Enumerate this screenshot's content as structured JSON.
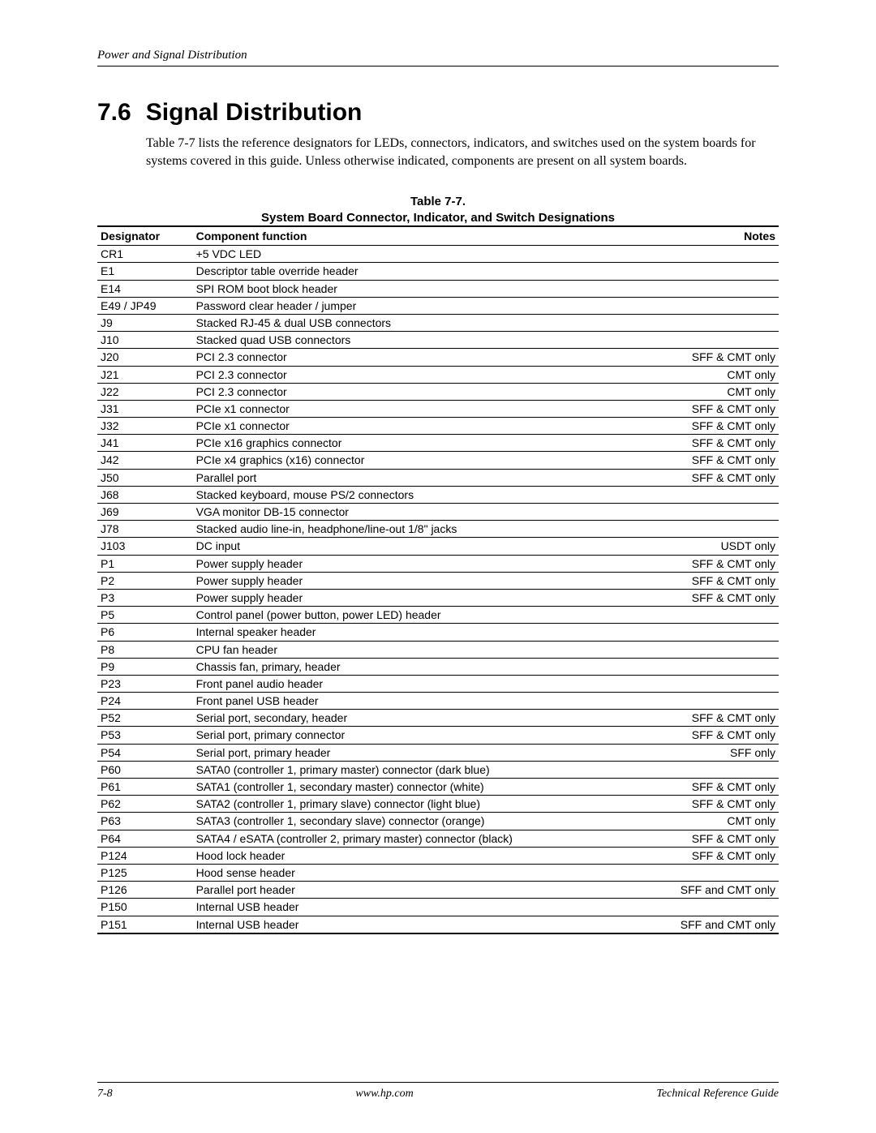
{
  "header": {
    "running": "Power and Signal Distribution"
  },
  "section": {
    "number": "7.6",
    "title": "Signal Distribution",
    "intro": "Table 7-7 lists the reference designators for LEDs, connectors, indicators, and switches used on the system boards for systems covered in this guide. Unless otherwise indicated, components are present on all system boards."
  },
  "table": {
    "caption_line1": "Table 7-7.",
    "caption_line2": "System Board Connector, Indicator, and Switch Designations",
    "columns": [
      "Designator",
      "Component function",
      "Notes"
    ],
    "rows": [
      [
        "CR1",
        "+5 VDC LED",
        ""
      ],
      [
        "E1",
        "Descriptor table override header",
        ""
      ],
      [
        "E14",
        "SPI ROM boot block header",
        ""
      ],
      [
        "E49 / JP49",
        "Password clear header / jumper",
        ""
      ],
      [
        "J9",
        "Stacked RJ-45 & dual USB connectors",
        ""
      ],
      [
        "J10",
        "Stacked quad USB connectors",
        ""
      ],
      [
        "J20",
        "PCI 2.3 connector",
        "SFF & CMT only"
      ],
      [
        "J21",
        "PCI 2.3 connector",
        "CMT only"
      ],
      [
        "J22",
        "PCI 2.3 connector",
        "CMT only"
      ],
      [
        "J31",
        "PCIe x1 connector",
        "SFF & CMT only"
      ],
      [
        "J32",
        "PCIe x1 connector",
        "SFF & CMT only"
      ],
      [
        "J41",
        "PCIe x16 graphics connector",
        "SFF & CMT only"
      ],
      [
        "J42",
        "PCIe x4 graphics (x16) connector",
        "SFF & CMT only"
      ],
      [
        "J50",
        "Parallel port",
        "SFF & CMT only"
      ],
      [
        "J68",
        "Stacked keyboard, mouse PS/2 connectors",
        ""
      ],
      [
        "J69",
        "VGA monitor DB-15 connector",
        ""
      ],
      [
        "J78",
        "Stacked audio line-in, headphone/line-out 1/8\" jacks",
        ""
      ],
      [
        "J103",
        "DC input",
        "USDT only"
      ],
      [
        "P1",
        "Power supply header",
        "SFF & CMT only"
      ],
      [
        "P2",
        "Power supply header",
        "SFF & CMT only"
      ],
      [
        "P3",
        "Power supply header",
        "SFF & CMT only"
      ],
      [
        "P5",
        "Control panel (power button, power LED) header",
        ""
      ],
      [
        "P6",
        "Internal speaker header",
        ""
      ],
      [
        "P8",
        "CPU fan header",
        ""
      ],
      [
        "P9",
        "Chassis fan, primary, header",
        ""
      ],
      [
        "P23",
        "Front panel audio header",
        ""
      ],
      [
        "P24",
        "Front panel USB header",
        ""
      ],
      [
        "P52",
        "Serial port, secondary, header",
        "SFF & CMT only"
      ],
      [
        "P53",
        "Serial port, primary connector",
        "SFF & CMT only"
      ],
      [
        "P54",
        "Serial port, primary header",
        "SFF only"
      ],
      [
        "P60",
        "SATA0 (controller 1, primary master) connector (dark blue)",
        ""
      ],
      [
        "P61",
        "SATA1 (controller 1, secondary master) connector (white)",
        "SFF & CMT only"
      ],
      [
        "P62",
        "SATA2 (controller 1, primary slave) connector (light blue)",
        "SFF & CMT only"
      ],
      [
        "P63",
        "SATA3 (controller 1, secondary slave) connector (orange)",
        "CMT only"
      ],
      [
        "P64",
        "SATA4 / eSATA (controller 2, primary master) connector (black)",
        "SFF & CMT only"
      ],
      [
        "P124",
        "Hood lock header",
        "SFF & CMT only"
      ],
      [
        "P125",
        "Hood sense header",
        ""
      ],
      [
        "P126",
        "Parallel port header",
        "SFF and CMT only"
      ],
      [
        "P150",
        "Internal USB header",
        ""
      ],
      [
        "P151",
        "Internal USB header",
        "SFF and CMT only"
      ]
    ]
  },
  "footer": {
    "page": "7-8",
    "url": "www.hp.com",
    "doc": "Technical Reference Guide"
  }
}
